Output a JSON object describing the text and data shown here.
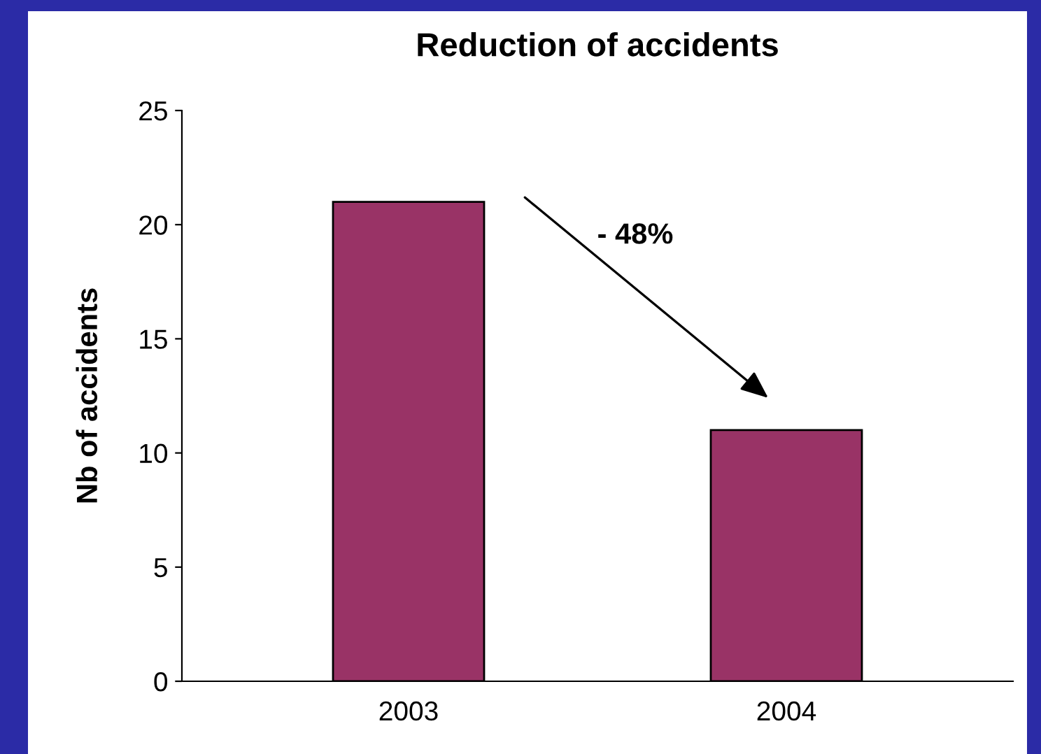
{
  "chart_data": {
    "type": "bar",
    "title": "Reduction of accidents",
    "ylabel": "Nb of accidents",
    "categories": [
      "2003",
      "2004"
    ],
    "values": [
      21,
      11
    ],
    "color": "#993366",
    "ylim": [
      0,
      25
    ],
    "yticks": [
      0,
      5,
      10,
      15,
      20,
      25
    ],
    "grid": false,
    "annotations": [
      "- 48%"
    ]
  }
}
